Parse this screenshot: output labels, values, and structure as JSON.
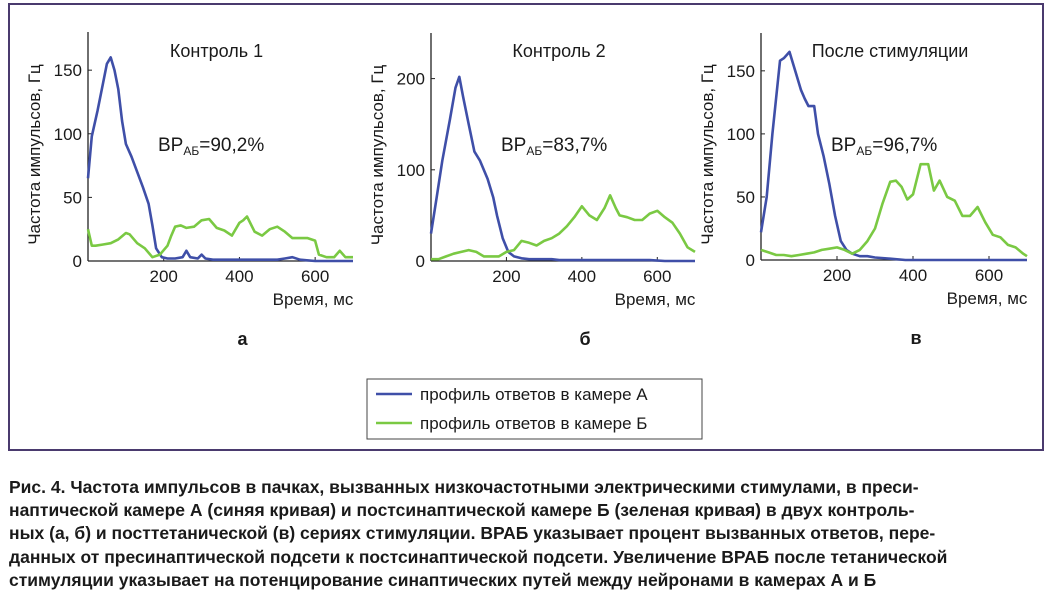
{
  "chart_data": [
    {
      "type": "line",
      "panel_label": "а",
      "title": "Контроль 1",
      "annotation": {
        "main": "ВР",
        "sub": "АБ",
        "value": "=90,2%"
      },
      "xlabel": "Время, мс",
      "ylabel": "Частота импульсов, Гц",
      "xlim": [
        0,
        700
      ],
      "ylim": [
        0,
        180
      ],
      "xticks": [
        200,
        400,
        600
      ],
      "yticks": [
        0,
        50,
        100,
        150
      ],
      "series": [
        {
          "color": "#3f4fa8",
          "points": [
            [
              0,
              65
            ],
            [
              10,
              98
            ],
            [
              25,
              118
            ],
            [
              40,
              140
            ],
            [
              50,
              155
            ],
            [
              60,
              160
            ],
            [
              70,
              150
            ],
            [
              80,
              135
            ],
            [
              90,
              110
            ],
            [
              100,
              92
            ],
            [
              115,
              82
            ],
            [
              130,
              70
            ],
            [
              145,
              58
            ],
            [
              160,
              45
            ],
            [
              170,
              28
            ],
            [
              180,
              10
            ],
            [
              195,
              3
            ],
            [
              210,
              2
            ],
            [
              230,
              2
            ],
            [
              250,
              3
            ],
            [
              260,
              8
            ],
            [
              270,
              3
            ],
            [
              290,
              2
            ],
            [
              300,
              5
            ],
            [
              310,
              2
            ],
            [
              330,
              1
            ],
            [
              360,
              1
            ],
            [
              400,
              1
            ],
            [
              440,
              1
            ],
            [
              480,
              1
            ],
            [
              500,
              1
            ],
            [
              520,
              2
            ],
            [
              540,
              3
            ],
            [
              560,
              1
            ],
            [
              600,
              0
            ],
            [
              640,
              0
            ],
            [
              680,
              0
            ],
            [
              700,
              0
            ]
          ]
        },
        {
          "color": "#7ac943",
          "points": [
            [
              0,
              25
            ],
            [
              10,
              12
            ],
            [
              20,
              12
            ],
            [
              40,
              13
            ],
            [
              60,
              14
            ],
            [
              80,
              17
            ],
            [
              100,
              22
            ],
            [
              110,
              21
            ],
            [
              130,
              14
            ],
            [
              150,
              10
            ],
            [
              170,
              3
            ],
            [
              190,
              5
            ],
            [
              210,
              12
            ],
            [
              220,
              20
            ],
            [
              230,
              27
            ],
            [
              245,
              28
            ],
            [
              260,
              26
            ],
            [
              280,
              27
            ],
            [
              300,
              32
            ],
            [
              320,
              33
            ],
            [
              340,
              26
            ],
            [
              360,
              24
            ],
            [
              380,
              20
            ],
            [
              400,
              30
            ],
            [
              410,
              32
            ],
            [
              420,
              35
            ],
            [
              440,
              23
            ],
            [
              460,
              20
            ],
            [
              480,
              25
            ],
            [
              500,
              27
            ],
            [
              520,
              23
            ],
            [
              540,
              18
            ],
            [
              560,
              18
            ],
            [
              580,
              18
            ],
            [
              600,
              16
            ],
            [
              610,
              5
            ],
            [
              630,
              3
            ],
            [
              650,
              3
            ],
            [
              665,
              8
            ],
            [
              680,
              3
            ],
            [
              700,
              3
            ]
          ]
        }
      ]
    },
    {
      "type": "line",
      "panel_label": "б",
      "title": "Контроль 2",
      "annotation": {
        "main": "ВР",
        "sub": "АБ",
        "value": "=83,7%"
      },
      "xlabel": "Время, мс",
      "ylabel": "Частота импульсов, Гц",
      "xlim": [
        0,
        700
      ],
      "ylim": [
        0,
        250
      ],
      "xticks": [
        200,
        400,
        600
      ],
      "yticks": [
        0,
        100,
        200
      ],
      "series": [
        {
          "color": "#3f4fa8",
          "points": [
            [
              0,
              30
            ],
            [
              15,
              70
            ],
            [
              30,
              110
            ],
            [
              50,
              155
            ],
            [
              65,
              190
            ],
            [
              75,
              202
            ],
            [
              85,
              180
            ],
            [
              100,
              150
            ],
            [
              115,
              120
            ],
            [
              130,
              110
            ],
            [
              150,
              90
            ],
            [
              165,
              70
            ],
            [
              175,
              50
            ],
            [
              190,
              25
            ],
            [
              205,
              10
            ],
            [
              220,
              5
            ],
            [
              240,
              3
            ],
            [
              260,
              2
            ],
            [
              300,
              2
            ],
            [
              320,
              2
            ],
            [
              340,
              1
            ],
            [
              380,
              1
            ],
            [
              420,
              1
            ],
            [
              460,
              1
            ],
            [
              500,
              1
            ],
            [
              540,
              1
            ],
            [
              580,
              1
            ],
            [
              620,
              0
            ],
            [
              660,
              0
            ],
            [
              700,
              0
            ]
          ]
        },
        {
          "color": "#7ac943",
          "points": [
            [
              0,
              2
            ],
            [
              20,
              2
            ],
            [
              40,
              5
            ],
            [
              60,
              8
            ],
            [
              80,
              10
            ],
            [
              100,
              12
            ],
            [
              120,
              10
            ],
            [
              140,
              5
            ],
            [
              160,
              5
            ],
            [
              180,
              5
            ],
            [
              200,
              10
            ],
            [
              220,
              12
            ],
            [
              240,
              22
            ],
            [
              260,
              20
            ],
            [
              280,
              17
            ],
            [
              300,
              22
            ],
            [
              320,
              25
            ],
            [
              340,
              30
            ],
            [
              360,
              38
            ],
            [
              380,
              48
            ],
            [
              400,
              60
            ],
            [
              420,
              50
            ],
            [
              440,
              45
            ],
            [
              460,
              58
            ],
            [
              475,
              72
            ],
            [
              490,
              58
            ],
            [
              500,
              50
            ],
            [
              520,
              48
            ],
            [
              540,
              45
            ],
            [
              560,
              45
            ],
            [
              580,
              52
            ],
            [
              600,
              55
            ],
            [
              620,
              48
            ],
            [
              640,
              42
            ],
            [
              660,
              30
            ],
            [
              680,
              15
            ],
            [
              700,
              10
            ]
          ]
        }
      ]
    },
    {
      "type": "line",
      "panel_label": "в",
      "title": "После стимуляции",
      "annotation": {
        "main": "ВР",
        "sub": "АБ",
        "value": "=96,7%"
      },
      "xlabel": "Время, мс",
      "ylabel": "Частота импульсов, Гц",
      "xlim": [
        0,
        700
      ],
      "ylim": [
        0,
        180
      ],
      "xticks": [
        200,
        400,
        600
      ],
      "yticks": [
        0,
        50,
        100,
        150
      ],
      "series": [
        {
          "color": "#3f4fa8",
          "points": [
            [
              0,
              22
            ],
            [
              15,
              50
            ],
            [
              30,
              100
            ],
            [
              50,
              158
            ],
            [
              60,
              160
            ],
            [
              75,
              165
            ],
            [
              90,
              150
            ],
            [
              105,
              135
            ],
            [
              115,
              128
            ],
            [
              125,
              122
            ],
            [
              140,
              122
            ],
            [
              150,
              100
            ],
            [
              165,
              82
            ],
            [
              180,
              60
            ],
            [
              195,
              35
            ],
            [
              210,
              15
            ],
            [
              225,
              8
            ],
            [
              240,
              5
            ],
            [
              260,
              3
            ],
            [
              280,
              3
            ],
            [
              300,
              2
            ],
            [
              340,
              1
            ],
            [
              380,
              0
            ],
            [
              420,
              0
            ],
            [
              460,
              0
            ],
            [
              500,
              0
            ],
            [
              540,
              0
            ],
            [
              580,
              0
            ],
            [
              620,
              0
            ],
            [
              660,
              0
            ],
            [
              700,
              0
            ]
          ]
        },
        {
          "color": "#7ac943",
          "points": [
            [
              0,
              8
            ],
            [
              20,
              6
            ],
            [
              40,
              4
            ],
            [
              60,
              4
            ],
            [
              80,
              3
            ],
            [
              100,
              4
            ],
            [
              120,
              5
            ],
            [
              140,
              6
            ],
            [
              160,
              8
            ],
            [
              180,
              9
            ],
            [
              200,
              10
            ],
            [
              220,
              8
            ],
            [
              240,
              5
            ],
            [
              260,
              8
            ],
            [
              280,
              15
            ],
            [
              300,
              25
            ],
            [
              320,
              45
            ],
            [
              340,
              62
            ],
            [
              355,
              63
            ],
            [
              370,
              58
            ],
            [
              385,
              48
            ],
            [
              400,
              52
            ],
            [
              420,
              76
            ],
            [
              440,
              76
            ],
            [
              455,
              55
            ],
            [
              470,
              63
            ],
            [
              490,
              50
            ],
            [
              510,
              47
            ],
            [
              530,
              35
            ],
            [
              550,
              35
            ],
            [
              570,
              42
            ],
            [
              590,
              30
            ],
            [
              610,
              20
            ],
            [
              630,
              18
            ],
            [
              650,
              12
            ],
            [
              670,
              10
            ],
            [
              690,
              5
            ],
            [
              700,
              3
            ]
          ]
        }
      ]
    }
  ],
  "legend": {
    "items": [
      {
        "label": "профиль ответов в камере А",
        "color": "#3f4fa8"
      },
      {
        "label": "профиль ответов в камере Б",
        "color": "#7ac943"
      }
    ]
  },
  "caption": {
    "lines": [
      "Рис. 4. Частота импульсов в пачках, вызванных низкочастотными электрическими стимулами, в преси-",
      "наптической камере А (синяя кривая) и постсинаптической камере Б (зеленая кривая) в двух контроль-",
      "ных (а, б) и посттетанической (в) сериях стимуляции. ВРАБ указывает процент вызванных ответов, пере-",
      "данных от пресинаптической подсети к постсинаптической подсети. Увеличение ВРАБ после тетанической",
      "стимуляции указывает на потенцирование синаптических путей между нейронами в камерах А и Б"
    ]
  }
}
